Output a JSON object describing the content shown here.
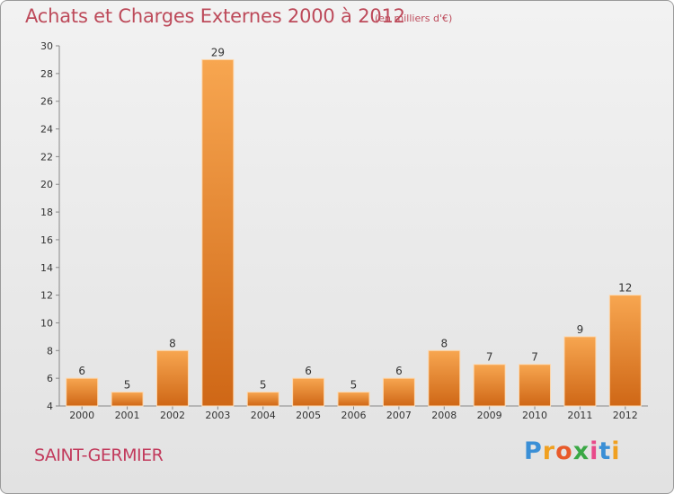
{
  "chart_data": {
    "type": "bar",
    "title": "Achats et Charges Externes 2000 à 2012",
    "subtitle": "(en milliers d'€)",
    "categories": [
      "2000",
      "2001",
      "2002",
      "2003",
      "2004",
      "2005",
      "2006",
      "2007",
      "2008",
      "2009",
      "2010",
      "2011",
      "2012"
    ],
    "values": [
      6,
      5,
      8,
      29,
      5,
      6,
      5,
      6,
      8,
      7,
      7,
      9,
      12
    ],
    "ylim": [
      4,
      30
    ],
    "yticks": [
      4,
      6,
      8,
      10,
      12,
      14,
      16,
      18,
      20,
      22,
      24,
      26,
      28,
      30
    ],
    "grid": false,
    "bar_color": "#f0913a"
  },
  "footer": {
    "place": "SAINT-GERMIER",
    "logo_letters": [
      "P",
      "r",
      "o",
      "x",
      "i",
      "t",
      "i"
    ],
    "logo_colors": [
      "#3a8fd6",
      "#f0a020",
      "#e85a2a",
      "#3aa845",
      "#e84a8a",
      "#3a8fd6",
      "#f0a020"
    ]
  }
}
